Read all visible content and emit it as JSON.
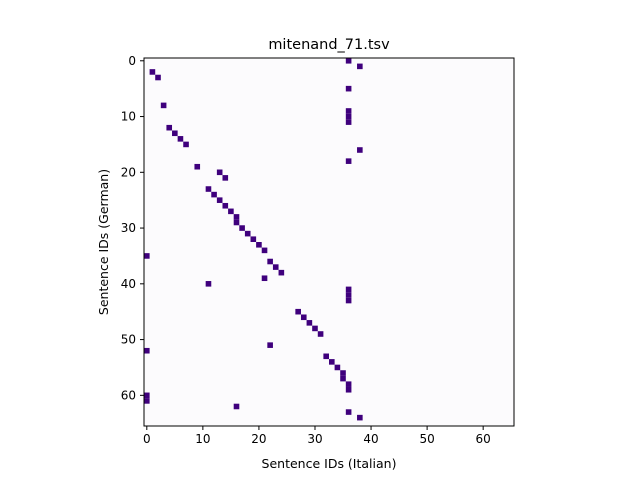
{
  "chart_data": {
    "type": "heatmap",
    "title": "mitenand_71.tsv",
    "xlabel": "Sentence IDs (Italian)",
    "ylabel": "Sentence IDs (German)",
    "xlim": [
      -0.5,
      65.5
    ],
    "ylim": [
      65.5,
      -0.5
    ],
    "x_ticks": [
      0,
      10,
      20,
      30,
      40,
      50,
      60
    ],
    "y_ticks": [
      0,
      10,
      20,
      30,
      40,
      50,
      60
    ],
    "grid": false,
    "colors": {
      "background": "#fcfbfd",
      "cell": "#3f007d"
    },
    "cells": [
      [
        36,
        0
      ],
      [
        38,
        1
      ],
      [
        1,
        2
      ],
      [
        2,
        3
      ],
      [
        36,
        5
      ],
      [
        3,
        8
      ],
      [
        36,
        9
      ],
      [
        36,
        10
      ],
      [
        36,
        11
      ],
      [
        4,
        12
      ],
      [
        5,
        13
      ],
      [
        6,
        14
      ],
      [
        7,
        15
      ],
      [
        38,
        16
      ],
      [
        36,
        18
      ],
      [
        9,
        19
      ],
      [
        13,
        20
      ],
      [
        14,
        21
      ],
      [
        11,
        23
      ],
      [
        12,
        24
      ],
      [
        13,
        25
      ],
      [
        14,
        26
      ],
      [
        15,
        27
      ],
      [
        16,
        28
      ],
      [
        16,
        29
      ],
      [
        17,
        30
      ],
      [
        18,
        31
      ],
      [
        19,
        32
      ],
      [
        20,
        33
      ],
      [
        21,
        34
      ],
      [
        0,
        35
      ],
      [
        22,
        36
      ],
      [
        23,
        37
      ],
      [
        24,
        38
      ],
      [
        21,
        39
      ],
      [
        11,
        40
      ],
      [
        36,
        41
      ],
      [
        36,
        42
      ],
      [
        36,
        43
      ],
      [
        27,
        45
      ],
      [
        28,
        46
      ],
      [
        29,
        47
      ],
      [
        30,
        48
      ],
      [
        31,
        49
      ],
      [
        22,
        51
      ],
      [
        0,
        52
      ],
      [
        32,
        53
      ],
      [
        33,
        54
      ],
      [
        34,
        55
      ],
      [
        35,
        56
      ],
      [
        35,
        57
      ],
      [
        36,
        58
      ],
      [
        36,
        59
      ],
      [
        0,
        60
      ],
      [
        0,
        61
      ],
      [
        16,
        62
      ],
      [
        36,
        63
      ],
      [
        38,
        64
      ]
    ]
  }
}
